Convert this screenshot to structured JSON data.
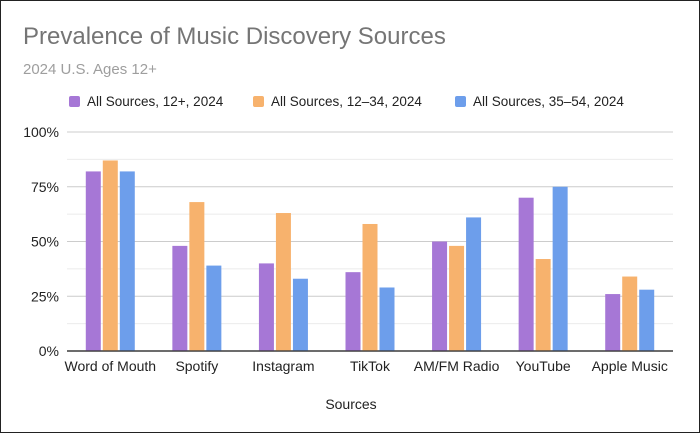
{
  "chart_data": {
    "type": "bar",
    "title": "Prevalence of Music Discovery Sources",
    "subtitle": "2024 U.S. Ages 12+",
    "xlabel": "Sources",
    "ylabel": "",
    "ylim": [
      0,
      100
    ],
    "yticks": [
      "0%",
      "25%",
      "50%",
      "75%",
      "100%"
    ],
    "ytick_values": [
      0,
      25,
      50,
      75,
      100
    ],
    "grid": true,
    "legend_position": "top",
    "categories": [
      "Word of Mouth",
      "Spotify",
      "Instagram",
      "TikTok",
      "AM/FM Radio",
      "YouTube",
      "Apple Music"
    ],
    "series": [
      {
        "name": "All Sources, 12+, 2024",
        "color": "#a677d6",
        "values": [
          82,
          48,
          40,
          36,
          50,
          70,
          26
        ]
      },
      {
        "name": "All Sources, 12–34, 2024",
        "color": "#f7b26d",
        "values": [
          87,
          68,
          63,
          58,
          48,
          42,
          34
        ]
      },
      {
        "name": "All Sources, 35–54, 2024",
        "color": "#6d9eeb",
        "values": [
          82,
          39,
          33,
          29,
          61,
          75,
          28
        ]
      }
    ]
  }
}
